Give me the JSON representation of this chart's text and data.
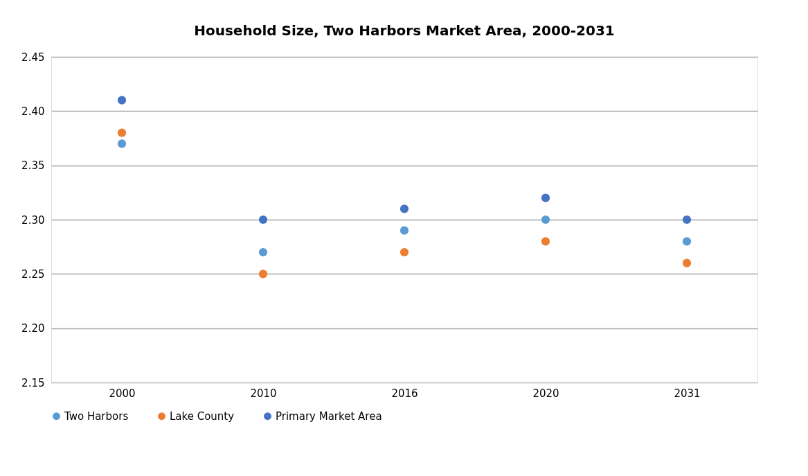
{
  "chart_data": {
    "type": "scatter",
    "title": "Household Size, Two Harbors Market Area, 2000-2031",
    "categories": [
      "2000",
      "2010",
      "2016",
      "2020",
      "2031"
    ],
    "series": [
      {
        "name": "Two Harbors",
        "color": "#5b9bd5",
        "values": [
          2.37,
          2.27,
          2.29,
          2.3,
          2.28
        ]
      },
      {
        "name": "Lake County",
        "color": "#ed7d31",
        "values": [
          2.38,
          2.25,
          2.27,
          2.28,
          2.26
        ]
      },
      {
        "name": "Primary Market Area",
        "color": "#4472c4",
        "values": [
          2.41,
          2.3,
          2.31,
          2.32,
          2.3
        ]
      }
    ],
    "ylim": [
      2.15,
      2.45
    ],
    "yticks": [
      {
        "value": 2.15,
        "label": "2.15"
      },
      {
        "value": 2.2,
        "label": "2.20"
      },
      {
        "value": 2.25,
        "label": "2.25"
      },
      {
        "value": 2.3,
        "label": "2.30"
      },
      {
        "value": 2.35,
        "label": "2.35"
      },
      {
        "value": 2.4,
        "label": "2.40"
      },
      {
        "value": 2.45,
        "label": "2.45"
      }
    ],
    "grid": "y",
    "legend": "bottom",
    "marker": "circle"
  }
}
